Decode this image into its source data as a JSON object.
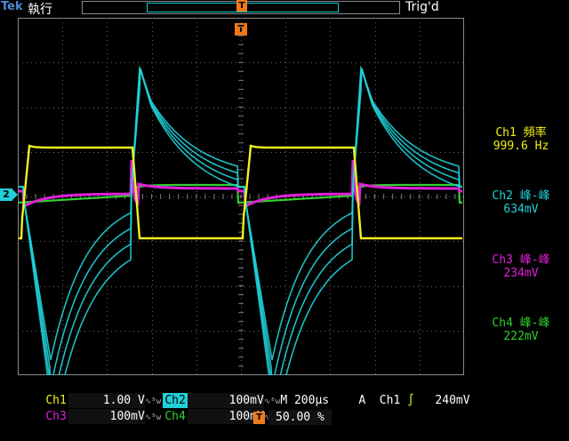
{
  "topbar": {
    "brand": "Tek",
    "run_state": "執行",
    "trigger_state": "Trig'd",
    "trigger_marker": "T"
  },
  "measurements": [
    {
      "label": "Ch1 頻率",
      "value": "999.6 Hz",
      "color": "#f0f020"
    },
    {
      "label": "Ch2 峰-峰",
      "value": "634mV",
      "color": "#20d0d8"
    },
    {
      "label": "Ch3 峰-峰",
      "value": "234mV",
      "color": "#e020d8"
    },
    {
      "label": "Ch4 峰-峰",
      "value": "222mV",
      "color": "#30d030"
    }
  ],
  "ground_marker": "2",
  "channels": {
    "ch1": {
      "name": "Ch1",
      "scale": "1.00 V",
      "color": "#f0f020"
    },
    "ch2": {
      "name": "Ch2",
      "scale": "100mV",
      "color": "#20d0d8"
    },
    "ch3": {
      "name": "Ch3",
      "scale": "100mV",
      "color": "#e020d8"
    },
    "ch4": {
      "name": "Ch4",
      "scale": "100mV",
      "color": "#30d030"
    }
  },
  "timebase": {
    "label": "M",
    "value": "200µs"
  },
  "trigger": {
    "mode": "A",
    "source": "Ch1",
    "slope": "∫",
    "level": "240mV"
  },
  "trigger_position": {
    "icon": "T",
    "value": "50.00 %"
  },
  "bandwidth_icon": "∿ᴮw"
}
